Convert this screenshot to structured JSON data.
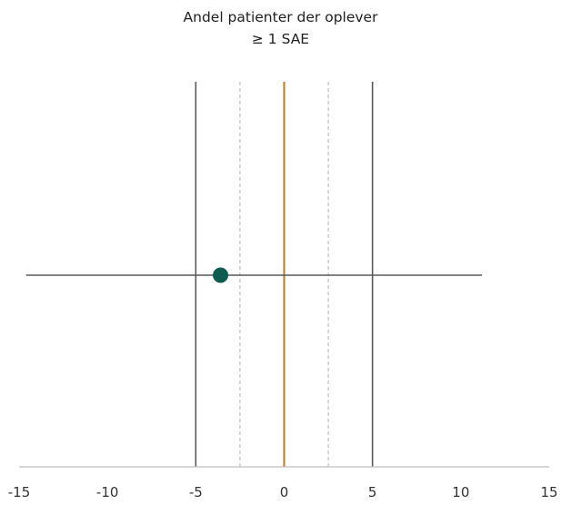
{
  "chart_data": {
    "type": "scatter",
    "title_lines": [
      "Andel patienter der oplever",
      "≥ 1 SAE"
    ],
    "xlabel": "",
    "ylabel": "",
    "xlim": [
      -15,
      15
    ],
    "x_ticks": [
      -15,
      -10,
      -5,
      0,
      5,
      10,
      15
    ],
    "grid": false,
    "point": {
      "x": -3.6,
      "ci": [
        -14.6,
        11.2
      ]
    },
    "reference_lines": [
      {
        "x": -5,
        "style": "solid"
      },
      {
        "x": -2.5,
        "style": "dashed"
      },
      {
        "x": 0,
        "style": "solid-accent"
      },
      {
        "x": 2.5,
        "style": "dashed"
      },
      {
        "x": 5,
        "style": "solid"
      }
    ],
    "colors": {
      "point": "#0e5b52",
      "zero_line": "#c7771f",
      "boundary_line": "#595959",
      "dashed_line": "#bfbfbf",
      "axis": "#bfbfbf",
      "ci_line": "#595959"
    }
  }
}
